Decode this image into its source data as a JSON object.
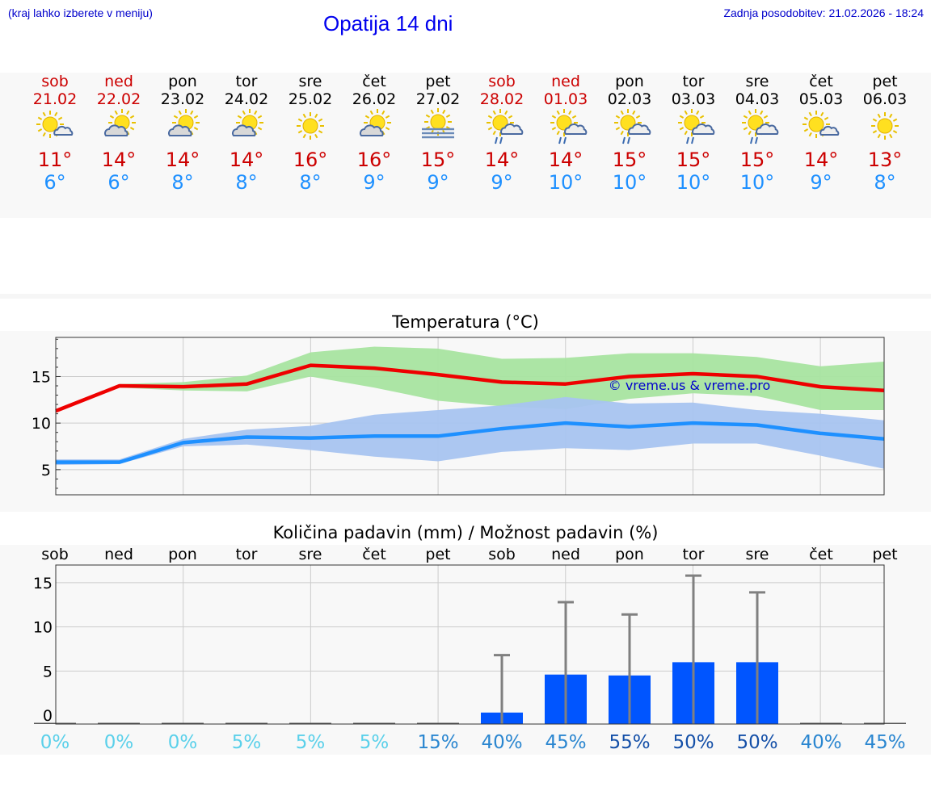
{
  "header": {
    "left_note": "(kraj lahko izberete v meniju)",
    "title": "Opatija 14 dni",
    "updated": "Zadnja posodobitev: 21.02.2026 - 18:24"
  },
  "forecast": [
    {
      "day": "sob",
      "date": "21.02",
      "weekend": true,
      "icon": "sun-cloud-small-icon",
      "max": "11°",
      "min": "6°"
    },
    {
      "day": "ned",
      "date": "22.02",
      "weekend": true,
      "icon": "sun-cloud-icon",
      "max": "14°",
      "min": "6°"
    },
    {
      "day": "pon",
      "date": "23.02",
      "weekend": false,
      "icon": "sun-cloud-icon",
      "max": "14°",
      "min": "8°"
    },
    {
      "day": "tor",
      "date": "24.02",
      "weekend": false,
      "icon": "sun-cloud-icon",
      "max": "14°",
      "min": "8°"
    },
    {
      "day": "sre",
      "date": "25.02",
      "weekend": false,
      "icon": "sun-icon",
      "max": "16°",
      "min": "8°"
    },
    {
      "day": "čet",
      "date": "26.02",
      "weekend": false,
      "icon": "sun-cloud-icon",
      "max": "16°",
      "min": "9°"
    },
    {
      "day": "pet",
      "date": "27.02",
      "weekend": false,
      "icon": "sun-fog-icon",
      "max": "15°",
      "min": "9°"
    },
    {
      "day": "sob",
      "date": "28.02",
      "weekend": true,
      "icon": "sun-cloud-rain-icon",
      "max": "14°",
      "min": "9°"
    },
    {
      "day": "ned",
      "date": "01.03",
      "weekend": true,
      "icon": "sun-cloud-rain-icon",
      "max": "14°",
      "min": "10°"
    },
    {
      "day": "pon",
      "date": "02.03",
      "weekend": false,
      "icon": "sun-cloud-rain-icon",
      "max": "15°",
      "min": "10°"
    },
    {
      "day": "tor",
      "date": "03.03",
      "weekend": false,
      "icon": "sun-cloud-rain-icon",
      "max": "15°",
      "min": "10°"
    },
    {
      "day": "sre",
      "date": "04.03",
      "weekend": false,
      "icon": "sun-cloud-rain-icon",
      "max": "15°",
      "min": "10°"
    },
    {
      "day": "čet",
      "date": "05.03",
      "weekend": false,
      "icon": "sun-cloud-small-icon",
      "max": "14°",
      "min": "9°"
    },
    {
      "day": "pet",
      "date": "06.03",
      "weekend": false,
      "icon": "sun-icon",
      "max": "13°",
      "min": "8°"
    }
  ],
  "colors": {
    "max_line": "#ee0000",
    "max_band": "#a8e4a0",
    "min_line": "#1e90ff",
    "min_band": "#a8c4f0",
    "bar": "#0055ff",
    "whisker": "#808080",
    "watermark": "#0000cc"
  },
  "chart_data": [
    {
      "type": "line",
      "title": "Temperatura (°C)",
      "watermark": "© vreme.us & vreme.pro",
      "x": [
        0,
        1,
        2,
        3,
        4,
        5,
        6,
        7,
        8,
        9,
        10,
        11,
        12,
        13
      ],
      "ylim": [
        2.3,
        19.2
      ],
      "yticks": [
        5,
        10,
        15
      ],
      "series": [
        {
          "name": "max",
          "values": [
            11.3,
            14.0,
            13.9,
            14.2,
            16.2,
            15.9,
            15.2,
            14.4,
            14.2,
            15.0,
            15.3,
            15.0,
            13.9,
            13.5
          ],
          "band_low": [
            11.2,
            13.8,
            13.5,
            13.4,
            15.0,
            13.8,
            12.4,
            11.8,
            11.5,
            12.6,
            13.2,
            12.9,
            11.4,
            11.4
          ],
          "band_high": [
            11.3,
            14.2,
            14.4,
            15.1,
            17.6,
            18.2,
            18.0,
            16.9,
            17.0,
            17.5,
            17.5,
            17.1,
            16.1,
            16.6
          ]
        },
        {
          "name": "min",
          "values": [
            5.8,
            5.8,
            7.9,
            8.5,
            8.4,
            8.6,
            8.6,
            9.4,
            10.0,
            9.6,
            10.0,
            9.8,
            8.9,
            8.3
          ],
          "band_low": [
            5.5,
            5.6,
            7.5,
            7.7,
            7.1,
            6.4,
            5.9,
            6.9,
            7.3,
            7.1,
            7.8,
            7.8,
            6.5,
            5.1
          ],
          "band_high": [
            6.1,
            6.1,
            8.3,
            9.3,
            9.7,
            10.9,
            11.4,
            11.9,
            12.8,
            12.1,
            12.2,
            11.4,
            11.0,
            10.3
          ]
        }
      ]
    },
    {
      "type": "bar",
      "title": "Količina padavin (mm) / Možnost padavin (%)",
      "categories": [
        "sob",
        "ned",
        "pon",
        "tor",
        "sre",
        "čet",
        "pet",
        "sob",
        "ned",
        "pon",
        "tor",
        "sre",
        "čet",
        "pet"
      ],
      "ylim": [
        -1,
        17
      ],
      "yticks": [
        0,
        5,
        10,
        15
      ],
      "values": [
        0,
        0,
        0,
        0,
        0,
        0,
        0,
        0.3,
        4.6,
        4.5,
        6.0,
        6.0,
        0,
        0
      ],
      "whisker_max": [
        0,
        0,
        0,
        0,
        0,
        0,
        0,
        6.8,
        12.8,
        11.4,
        15.8,
        13.9,
        0,
        0
      ],
      "probability": [
        "0%",
        "0%",
        "0%",
        "5%",
        "5%",
        "5%",
        "15%",
        "40%",
        "45%",
        "55%",
        "50%",
        "50%",
        "40%",
        "45%"
      ],
      "probability_values": [
        0,
        0,
        0,
        5,
        5,
        5,
        15,
        40,
        45,
        55,
        50,
        50,
        40,
        45
      ]
    }
  ]
}
